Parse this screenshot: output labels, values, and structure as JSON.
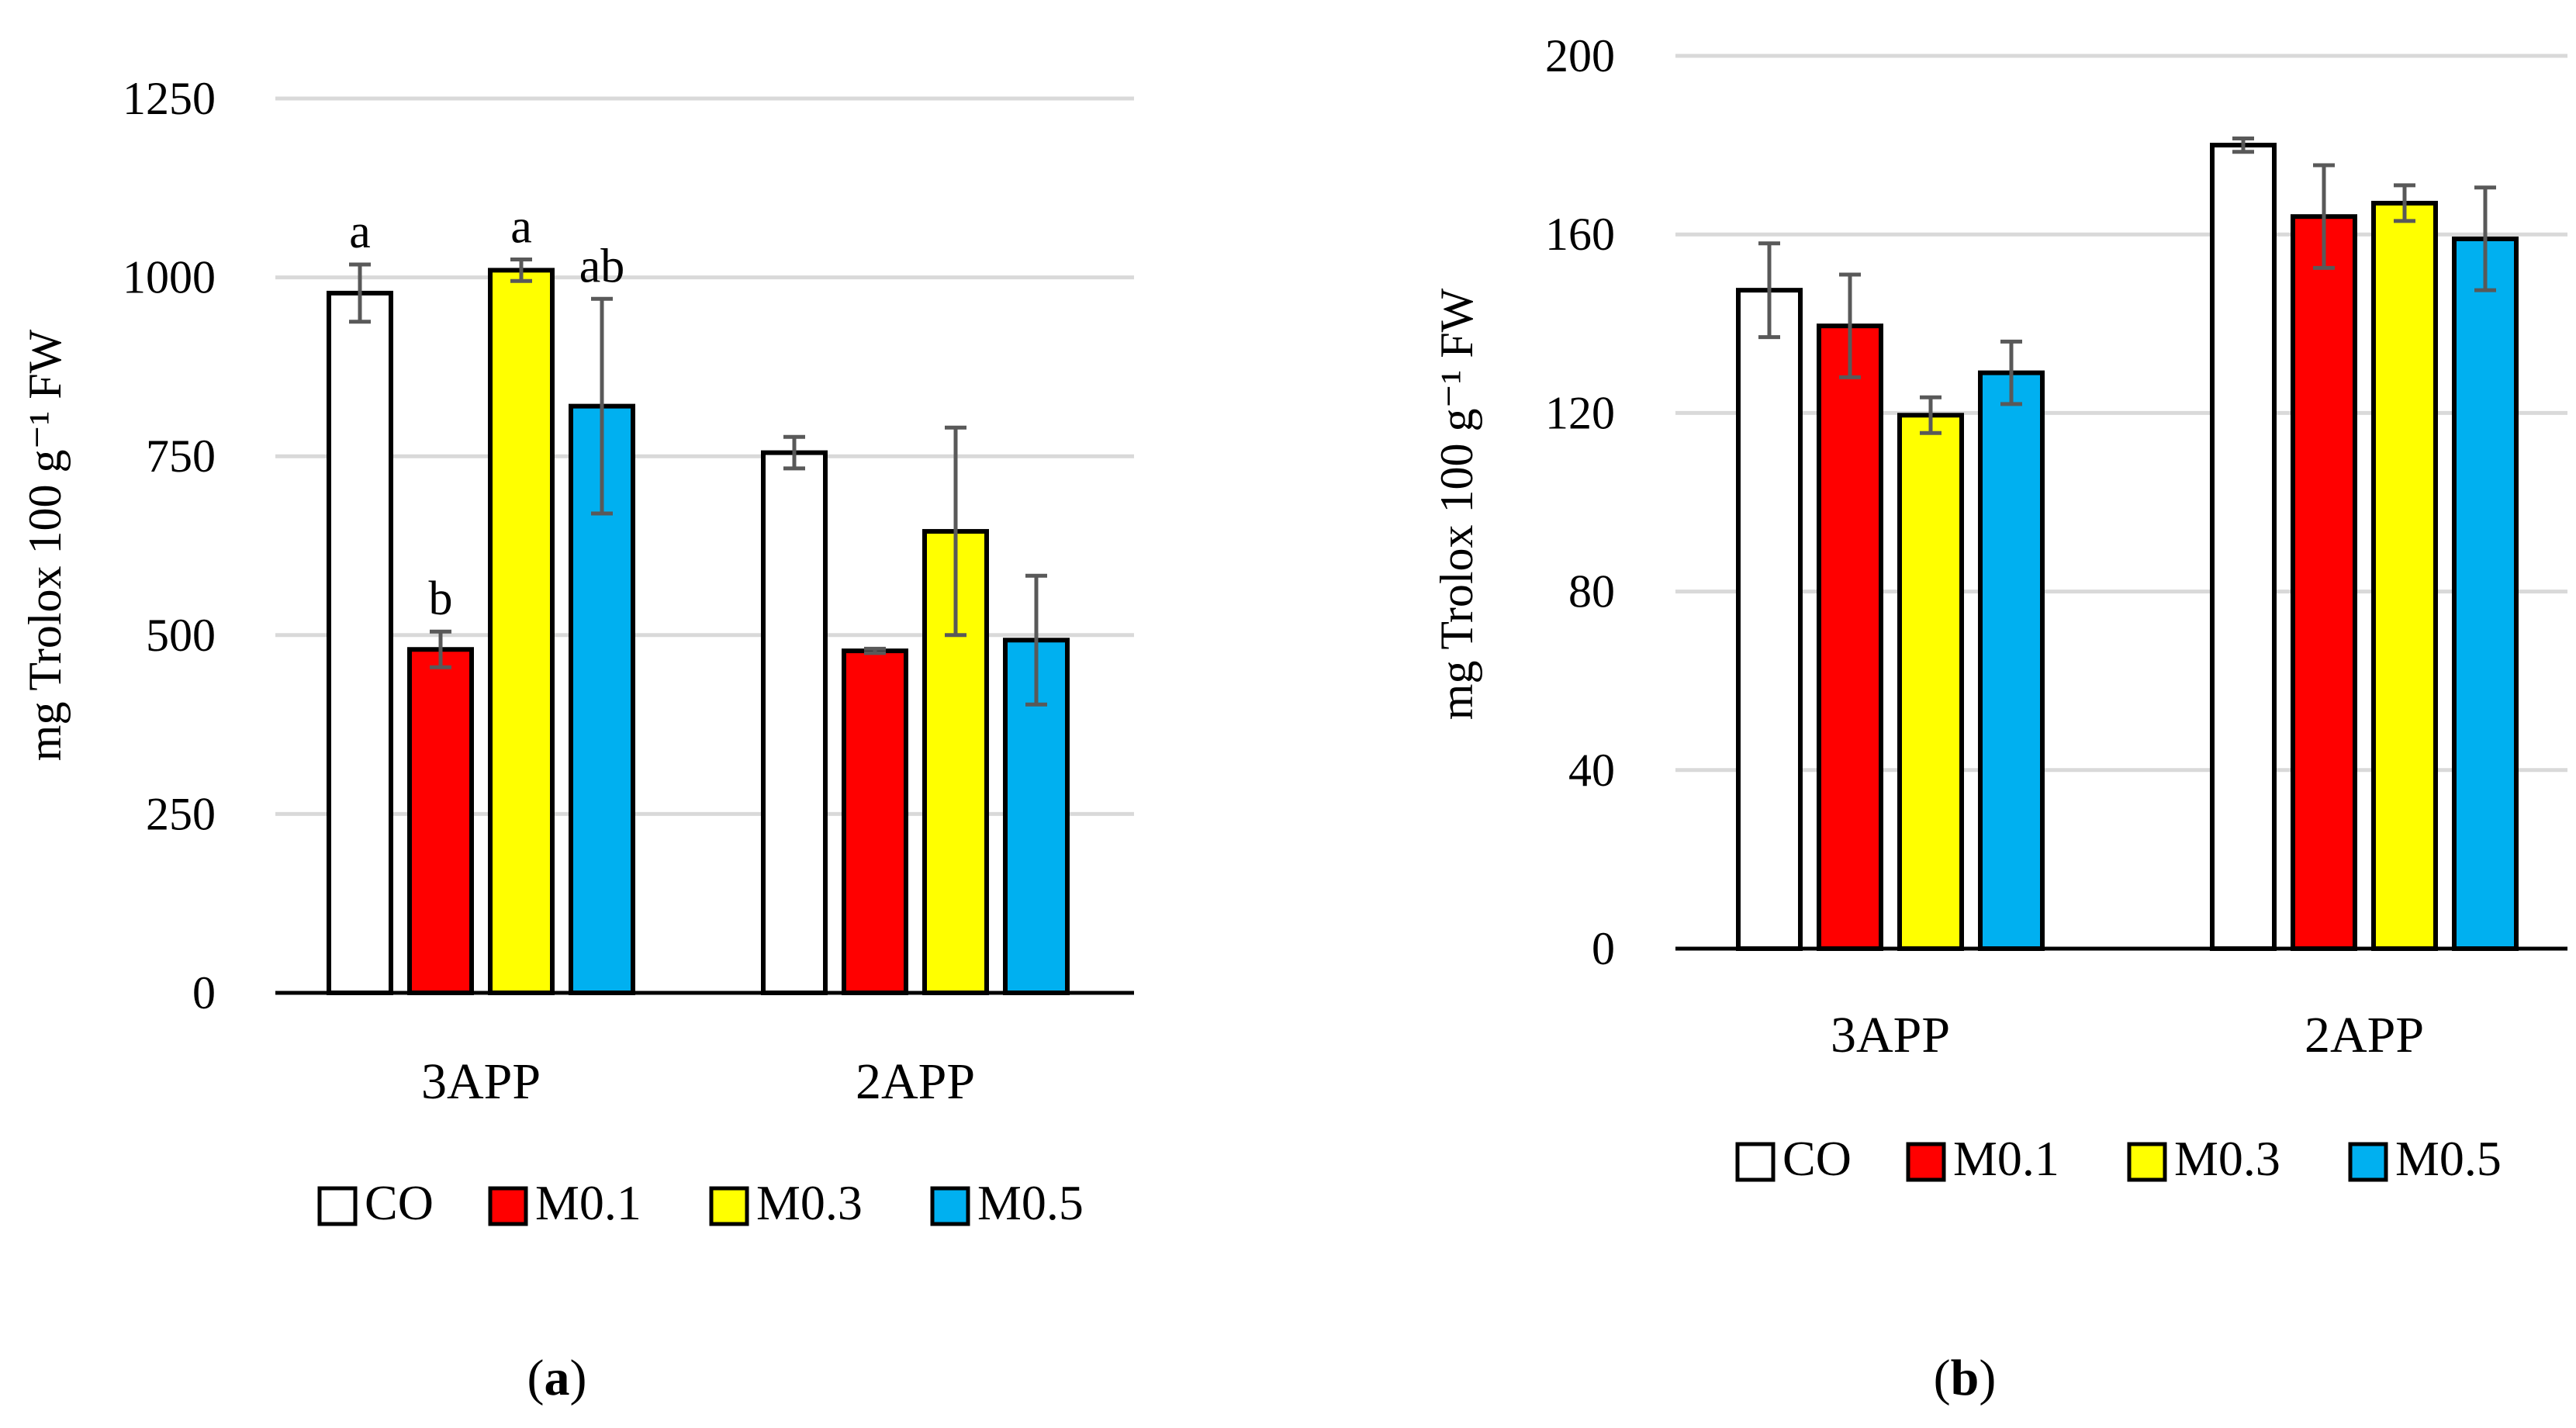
{
  "colors": {
    "CO": "#ffffff",
    "M0.1": "#ff0000",
    "M0.3": "#ffff00",
    "M0.5": "#00b0f0",
    "grid": "#d9d9d9",
    "axis": "#000000",
    "error": "#595959"
  },
  "chart_data": [
    {
      "type": "bar",
      "panel_label": "a",
      "ylabel": "mg Trolox 100 g⁻¹ FW",
      "ylim": [
        0,
        1250
      ],
      "yticks": [
        0,
        250,
        500,
        750,
        1000,
        1250
      ],
      "ytick_labels": [
        "0",
        "250",
        "500",
        "750",
        "1000",
        "1250"
      ],
      "grid": true,
      "legend_position": "bottom",
      "categories": [
        "3APP",
        "2APP"
      ],
      "series": [
        {
          "name": "CO",
          "values": [
            978,
            755
          ],
          "errors": [
            40,
            22
          ],
          "labels": [
            "a",
            ""
          ]
        },
        {
          "name": "M0.1",
          "values": [
            480,
            478
          ],
          "errors": [
            25,
            3
          ],
          "labels": [
            "b",
            ""
          ]
        },
        {
          "name": "M0.3",
          "values": [
            1010,
            645
          ],
          "errors": [
            15,
            145
          ],
          "labels": [
            "a",
            ""
          ]
        },
        {
          "name": "M0.5",
          "values": [
            820,
            493
          ],
          "errors": [
            150,
            90
          ],
          "labels": [
            "ab",
            ""
          ]
        }
      ]
    },
    {
      "type": "bar",
      "panel_label": "b",
      "ylabel": "mg Trolox 100 g⁻¹ FW",
      "ylim": [
        0,
        200
      ],
      "yticks": [
        0,
        40,
        80,
        120,
        160,
        200
      ],
      "ytick_labels": [
        "0",
        "40",
        "80",
        "120",
        "160",
        "200"
      ],
      "grid": true,
      "legend_position": "bottom",
      "categories": [
        "3APP",
        "2APP"
      ],
      "series": [
        {
          "name": "CO",
          "values": [
            147.5,
            180
          ],
          "errors": [
            10.5,
            1.5
          ],
          "labels": [
            "",
            ""
          ]
        },
        {
          "name": "M0.1",
          "values": [
            139.5,
            164
          ],
          "errors": [
            11.5,
            11.5
          ],
          "labels": [
            "",
            ""
          ]
        },
        {
          "name": "M0.3",
          "values": [
            119.5,
            167
          ],
          "errors": [
            4,
            4
          ],
          "labels": [
            "",
            ""
          ]
        },
        {
          "name": "M0.5",
          "values": [
            129,
            159
          ],
          "errors": [
            7,
            11.5
          ],
          "labels": [
            "",
            ""
          ]
        }
      ]
    }
  ]
}
